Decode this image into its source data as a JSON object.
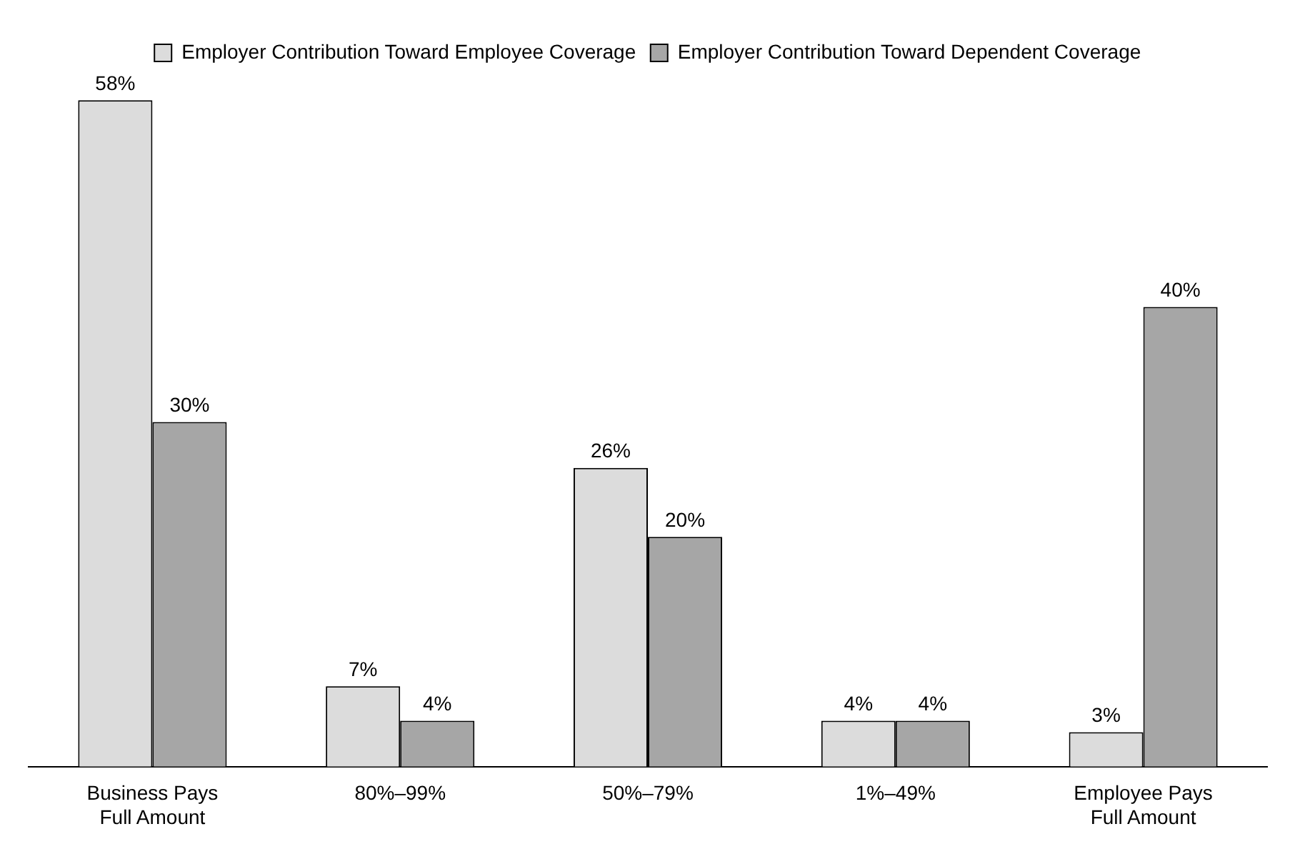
{
  "chart_data": {
    "type": "bar",
    "categories": [
      "Business Pays Full Amount",
      "80%–99%",
      "50%–79%",
      "1%–49%",
      "Employee Pays Full Amount"
    ],
    "series": [
      {
        "name": "Employer Contribution Toward Employee Coverage",
        "color": "#dcdcdc",
        "values": [
          58,
          7,
          26,
          4,
          3
        ],
        "value_labels": [
          "58%",
          "7%",
          "26%",
          "4%",
          "3%"
        ]
      },
      {
        "name": "Employer Contribution Toward Dependent Coverage",
        "color": "#a6a6a6",
        "values": [
          30,
          4,
          20,
          4,
          40
        ],
        "value_labels": [
          "30%",
          "4%",
          "20%",
          "4%",
          "40%"
        ]
      }
    ],
    "legend": "top",
    "grid": false,
    "tick_labels": "x"
  }
}
